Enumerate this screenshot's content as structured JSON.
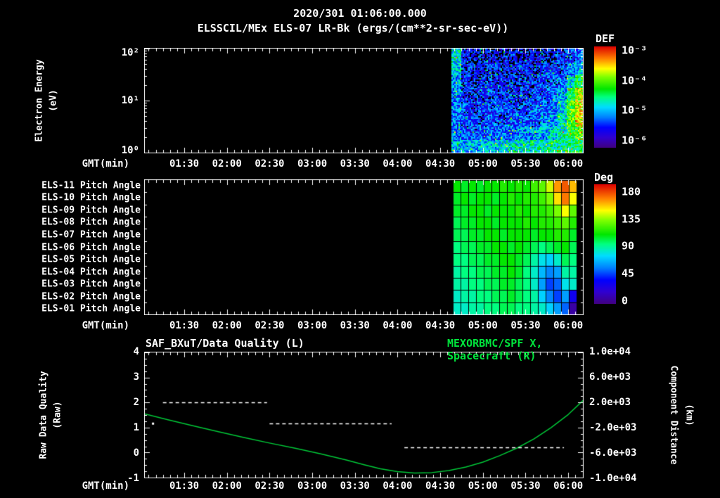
{
  "header": {
    "datetime": "2020/301 01:06:00.000",
    "instrument_title": "ELSSCIL/MEx ELS-07 LR-Bk  (ergs/(cm**2-sr-sec-eV))"
  },
  "colors": {
    "background": "#000000",
    "text": "#ffffff",
    "frame": "#ffffff",
    "accent_green": "#00e53c",
    "curve_green": "#00c838"
  },
  "time_axis": {
    "label": "GMT(min)",
    "range_hours": [
      1.03,
      6.18
    ],
    "tick_labels": [
      "01:30",
      "02:00",
      "02:30",
      "03:00",
      "03:30",
      "04:00",
      "04:30",
      "05:00",
      "05:30",
      "06:00"
    ],
    "tick_hours": [
      1.5,
      2.0,
      2.5,
      3.0,
      3.5,
      4.0,
      4.5,
      5.0,
      5.5,
      6.0
    ]
  },
  "chart_data": [
    {
      "type": "heatmap",
      "name": "electron-energy-spectrogram",
      "y_axis": {
        "label_lines": [
          "Electron Energy",
          "(eV)"
        ],
        "scale": "log",
        "range_ev": [
          1,
          100
        ],
        "tick_labels": [
          "10²",
          "10¹",
          "10⁰"
        ],
        "tick_exponents": [
          2,
          1,
          0
        ]
      },
      "colorbar": {
        "title": "DEF",
        "tick_labels": [
          "10⁻³",
          "10⁻⁴",
          "10⁻⁵",
          "10⁻⁶"
        ],
        "log_range": [
          -6.5,
          -3
        ]
      },
      "data_start_hour": 4.63,
      "value_units": "log10 ergs/(cm**2-sr-sec-eV)",
      "grid_log_flux": [
        [
          -5.0,
          -5.9,
          -6.0,
          -5.9,
          -6.0,
          -6.0,
          -5.9,
          -6.0,
          -5.9,
          -6.0,
          -5.9,
          -5.9,
          -5.8,
          -5.7,
          -5.6
        ],
        [
          -5.1,
          -5.8,
          -5.9,
          -5.9,
          -5.8,
          -5.9,
          -5.9,
          -5.8,
          -5.9,
          -5.8,
          -5.8,
          -5.8,
          -5.7,
          -5.5,
          -5.2
        ],
        [
          -5.3,
          -5.8,
          -5.8,
          -5.8,
          -5.8,
          -5.8,
          -5.8,
          -5.8,
          -5.8,
          -5.8,
          -5.7,
          -5.7,
          -5.6,
          -5.1,
          -4.6
        ],
        [
          -5.4,
          -5.8,
          -5.8,
          -5.8,
          -5.7,
          -5.8,
          -5.8,
          -5.7,
          -5.8,
          -5.7,
          -5.7,
          -5.6,
          -5.3,
          -4.6,
          -4.0
        ],
        [
          -5.5,
          -5.7,
          -5.8,
          -5.7,
          -5.7,
          -5.7,
          -5.7,
          -5.7,
          -5.7,
          -5.6,
          -5.6,
          -5.5,
          -5.1,
          -4.3,
          -3.8
        ],
        [
          -5.5,
          -5.7,
          -5.7,
          -5.7,
          -5.6,
          -5.7,
          -5.6,
          -5.6,
          -5.6,
          -5.6,
          -5.5,
          -5.3,
          -5.0,
          -4.3,
          -3.9
        ],
        [
          -5.4,
          -5.6,
          -5.6,
          -5.6,
          -5.5,
          -5.5,
          -5.5,
          -5.4,
          -5.4,
          -5.3,
          -5.3,
          -5.1,
          -4.9,
          -4.5,
          -4.3
        ],
        [
          -5.2,
          -5.3,
          -5.3,
          -5.2,
          -5.2,
          -5.1,
          -5.1,
          -5.0,
          -5.0,
          -4.9,
          -4.9,
          -4.8,
          -4.8,
          -4.7,
          -4.6
        ]
      ]
    },
    {
      "type": "heatmap",
      "name": "pitch-angle-panel",
      "row_labels": [
        "ELS-11 Pitch Angle",
        "ELS-10 Pitch Angle",
        "ELS-09 Pitch Angle",
        "ELS-08 Pitch Angle",
        "ELS-07 Pitch Angle",
        "ELS-06 Pitch Angle",
        "ELS-05 Pitch Angle",
        "ELS-04 Pitch Angle",
        "ELS-03 Pitch Angle",
        "ELS-02 Pitch Angle",
        "ELS-01 Pitch Angle"
      ],
      "colorbar": {
        "title": "Deg",
        "tick_labels": [
          "180",
          "135",
          "90",
          "45",
          "0"
        ],
        "range": [
          0,
          180
        ]
      },
      "data_start_hour": 4.65,
      "data_end_hour": 6.1,
      "values_deg": [
        [
          105,
          100,
          105,
          100,
          105,
          105,
          110,
          105,
          110,
          105,
          115,
          120,
          135,
          155,
          165,
          150
        ],
        [
          100,
          105,
          100,
          105,
          105,
          100,
          105,
          110,
          105,
          110,
          110,
          115,
          125,
          145,
          160,
          140
        ],
        [
          100,
          100,
          105,
          105,
          100,
          105,
          105,
          105,
          110,
          105,
          110,
          110,
          115,
          125,
          140,
          120
        ],
        [
          95,
          100,
          100,
          105,
          105,
          100,
          105,
          105,
          105,
          110,
          105,
          110,
          110,
          115,
          120,
          110
        ],
        [
          95,
          95,
          100,
          100,
          105,
          105,
          100,
          105,
          105,
          105,
          100,
          105,
          105,
          110,
          110,
          100
        ],
        [
          90,
          95,
          95,
          100,
          100,
          105,
          105,
          100,
          105,
          100,
          95,
          90,
          95,
          100,
          105,
          95
        ],
        [
          90,
          90,
          95,
          95,
          100,
          100,
          105,
          105,
          100,
          95,
          85,
          75,
          70,
          80,
          95,
          90
        ],
        [
          85,
          90,
          90,
          95,
          95,
          100,
          100,
          105,
          100,
          90,
          80,
          65,
          55,
          60,
          85,
          85
        ],
        [
          85,
          85,
          90,
          90,
          95,
          95,
          100,
          100,
          95,
          90,
          80,
          60,
          45,
          50,
          75,
          80
        ],
        [
          80,
          85,
          85,
          90,
          90,
          95,
          95,
          100,
          95,
          90,
          85,
          70,
          55,
          45,
          60,
          30
        ],
        [
          80,
          80,
          85,
          85,
          90,
          90,
          95,
          95,
          90,
          90,
          85,
          80,
          70,
          60,
          50,
          8
        ]
      ]
    },
    {
      "type": "line",
      "name": "quality-and-distance-plot",
      "title_left": "SAF_BXuT/Data Quality (L)",
      "title_right": "MEXORBMC/SPF X, Spacecraft (R)",
      "y_left": {
        "label_lines": [
          "Raw Data Quality",
          "(Raw)"
        ],
        "ticks": [
          4,
          3,
          2,
          1,
          0,
          -1
        ],
        "range": [
          -1,
          4
        ]
      },
      "y_right": {
        "label_lines": [
          "Component Distance",
          "(km)"
        ],
        "tick_labels": [
          "1.0e+04",
          "6.0e+03",
          "2.0e+03",
          "-2.0e+03",
          "-6.0e+03",
          "-1.0e+04"
        ]
      },
      "series": [
        {
          "name": "MEXORBMC/SPF X, Spacecraft (R)",
          "color_key": "curve_green",
          "points": [
            [
              1.03,
              1.55
            ],
            [
              1.3,
              1.32
            ],
            [
              1.6,
              1.07
            ],
            [
              1.9,
              0.83
            ],
            [
              2.2,
              0.6
            ],
            [
              2.5,
              0.38
            ],
            [
              2.8,
              0.17
            ],
            [
              3.1,
              -0.05
            ],
            [
              3.4,
              -0.3
            ],
            [
              3.6,
              -0.48
            ],
            [
              3.8,
              -0.65
            ],
            [
              4.0,
              -0.76
            ],
            [
              4.2,
              -0.82
            ],
            [
              4.4,
              -0.8
            ],
            [
              4.6,
              -0.72
            ],
            [
              4.8,
              -0.58
            ],
            [
              5.0,
              -0.38
            ],
            [
              5.2,
              -0.12
            ],
            [
              5.4,
              0.18
            ],
            [
              5.6,
              0.55
            ],
            [
              5.8,
              1.0
            ],
            [
              6.0,
              1.52
            ],
            [
              6.18,
              2.1
            ]
          ]
        }
      ],
      "quality_segments": [
        {
          "y": 2.0,
          "t0": 1.25,
          "t1": 2.47
        },
        {
          "y": 1.17,
          "t0": 2.5,
          "t1": 3.93
        },
        {
          "y": 0.2,
          "t0": 4.08,
          "t1": 5.95
        }
      ],
      "point_marker": {
        "t": 1.13,
        "y": 1.17
      }
    }
  ]
}
